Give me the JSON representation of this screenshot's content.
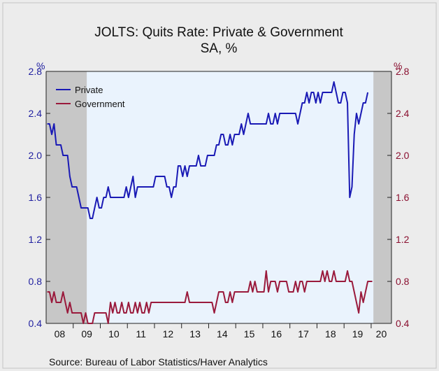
{
  "chart_data": {
    "type": "line",
    "title": "JOLTS: Quits Rate: Private & Government",
    "subtitle": "SA, %",
    "ylabel_left": "%",
    "ylabel_right": "%",
    "ylim": [
      0.4,
      2.8
    ],
    "yticks": [
      2.8,
      2.4,
      2.0,
      1.6,
      1.2,
      0.8,
      0.4
    ],
    "ytick_labels": [
      "2.8",
      "2.4",
      "2.0",
      "1.6",
      "1.2",
      "0.8",
      "0.4"
    ],
    "x_start": "2008-01",
    "x_end": "2020-09",
    "x_tick_labels": [
      "08",
      "09",
      "10",
      "11",
      "12",
      "13",
      "14",
      "15",
      "16",
      "17",
      "18",
      "19",
      "20"
    ],
    "grid": false,
    "legend_position": "top-left",
    "recessions": [
      {
        "start": "2008-01",
        "end": "2009-06"
      },
      {
        "start": "2020-02",
        "end": "2020-09"
      }
    ],
    "series": [
      {
        "name": "Private",
        "color": "#1a1ab5",
        "values": [
          2.3,
          2.3,
          2.2,
          2.3,
          2.1,
          2.1,
          2.1,
          2.0,
          2.0,
          2.0,
          1.8,
          1.7,
          1.7,
          1.7,
          1.6,
          1.5,
          1.5,
          1.5,
          1.5,
          1.4,
          1.4,
          1.5,
          1.6,
          1.5,
          1.5,
          1.6,
          1.6,
          1.7,
          1.6,
          1.6,
          1.6,
          1.6,
          1.6,
          1.6,
          1.6,
          1.7,
          1.6,
          1.7,
          1.8,
          1.6,
          1.7,
          1.7,
          1.7,
          1.7,
          1.7,
          1.7,
          1.7,
          1.7,
          1.8,
          1.8,
          1.8,
          1.8,
          1.8,
          1.7,
          1.7,
          1.6,
          1.7,
          1.7,
          1.9,
          1.9,
          1.8,
          1.9,
          1.8,
          1.9,
          1.9,
          1.9,
          1.9,
          2.0,
          1.9,
          1.9,
          1.9,
          2.0,
          2.0,
          2.0,
          2.0,
          2.1,
          2.1,
          2.2,
          2.2,
          2.1,
          2.1,
          2.2,
          2.1,
          2.2,
          2.2,
          2.2,
          2.3,
          2.2,
          2.3,
          2.4,
          2.3,
          2.3,
          2.3,
          2.3,
          2.3,
          2.3,
          2.3,
          2.3,
          2.4,
          2.3,
          2.3,
          2.4,
          2.3,
          2.4,
          2.4,
          2.4,
          2.4,
          2.4,
          2.4,
          2.4,
          2.4,
          2.3,
          2.4,
          2.5,
          2.5,
          2.6,
          2.5,
          2.6,
          2.6,
          2.5,
          2.6,
          2.5,
          2.6,
          2.6,
          2.6,
          2.6,
          2.6,
          2.7,
          2.6,
          2.5,
          2.5,
          2.6,
          2.6,
          2.5,
          1.6,
          1.7,
          2.2,
          2.4,
          2.3,
          2.4,
          2.5,
          2.5,
          2.6
        ]
      },
      {
        "name": "Government",
        "color": "#9a1a3c",
        "values": [
          0.7,
          0.7,
          0.6,
          0.7,
          0.6,
          0.6,
          0.6,
          0.7,
          0.6,
          0.5,
          0.6,
          0.5,
          0.5,
          0.5,
          0.5,
          0.5,
          0.4,
          0.5,
          0.4,
          0.4,
          0.4,
          0.5,
          0.5,
          0.5,
          0.5,
          0.5,
          0.5,
          0.4,
          0.6,
          0.5,
          0.6,
          0.5,
          0.5,
          0.6,
          0.5,
          0.5,
          0.6,
          0.5,
          0.5,
          0.6,
          0.5,
          0.6,
          0.5,
          0.5,
          0.6,
          0.5,
          0.6,
          0.6,
          0.6,
          0.6,
          0.6,
          0.6,
          0.6,
          0.6,
          0.6,
          0.6,
          0.6,
          0.6,
          0.6,
          0.6,
          0.6,
          0.6,
          0.7,
          0.6,
          0.6,
          0.6,
          0.6,
          0.6,
          0.6,
          0.6,
          0.6,
          0.6,
          0.6,
          0.6,
          0.5,
          0.6,
          0.7,
          0.7,
          0.7,
          0.6,
          0.6,
          0.7,
          0.6,
          0.7,
          0.7,
          0.7,
          0.7,
          0.7,
          0.7,
          0.7,
          0.8,
          0.7,
          0.8,
          0.7,
          0.7,
          0.7,
          0.7,
          0.9,
          0.7,
          0.8,
          0.8,
          0.8,
          0.7,
          0.8,
          0.8,
          0.8,
          0.8,
          0.7,
          0.7,
          0.7,
          0.8,
          0.7,
          0.8,
          0.8,
          0.7,
          0.8,
          0.8,
          0.8,
          0.8,
          0.8,
          0.8,
          0.8,
          0.9,
          0.8,
          0.9,
          0.8,
          0.8,
          0.9,
          0.8,
          0.8,
          0.8,
          0.8,
          0.8,
          0.9,
          0.8,
          0.8,
          0.7,
          0.6,
          0.5,
          0.7,
          0.6,
          0.7,
          0.8,
          0.8,
          0.8
        ]
      }
    ]
  },
  "source": "Source:  Bureau of Labor Statistics/Haver Analytics"
}
